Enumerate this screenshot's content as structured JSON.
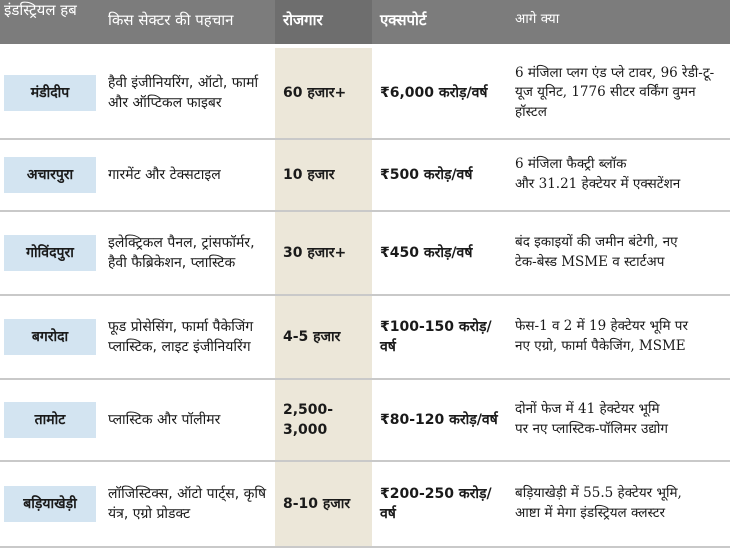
{
  "table": {
    "header": [
      "इंडस्ट्रियल हब",
      "किस सेक्टर की पहचान",
      "रोजगार",
      "एक्सपोर्ट",
      "आगे क्या"
    ],
    "rows": [
      [
        [
          "मंडीदीप"
        ],
        [
          "हैवी इंजीनियरिंग, ऑटो, फार्मा",
          "और ऑप्टिकल फाइबर"
        ],
        [
          "60 हजार+"
        ],
        [
          "₹6,000 करोड़/वर्ष"
        ],
        [
          "6 मंजिला प्लग एंड प्ले टावर, 96 रेडी-टू-",
          "यूज यूनिट, 1776 सीटर वर्किंग वुमन हॉस्टल"
        ]
      ],
      [
        [
          "अचारपुरा"
        ],
        [
          "गारमेंट और टेक्सटाइल"
        ],
        [
          "10 हजार"
        ],
        [
          "₹500 करोड़/वर्ष"
        ],
        [
          "6 मंजिला फैक्ट्री ब्लॉक",
          "और 31.21 हेक्टेयर में एक्सटेंशन"
        ]
      ],
      [
        [
          "गोविंदपुरा"
        ],
        [
          "इलेक्ट्रिकल पैनल, ट्रांसफॉर्मर,",
          "हैवी फैब्रिकेशन, प्लास्टिक"
        ],
        [
          "30 हजार+"
        ],
        [
          "₹450 करोड़/वर्ष"
        ],
        [
          "बंद इकाइयों की जमीन बंटेगी, नए",
          "टेक-बेस्ड MSME व स्टार्टअप"
        ]
      ],
      [
        [
          "बगरोदा"
        ],
        [
          "फूड प्रोसेसिंग, फार्मा पैकेजिंग",
          "प्लास्टिक, लाइट इंजीनियरिंग"
        ],
        [
          "4-5 हजार"
        ],
        [
          "₹100-150 करोड़/वर्ष"
        ],
        [
          "फेस-1 व 2 में 19 हेक्टेयर भूमि पर",
          "नए एग्रो, फार्मा पैकेजिंग, MSME"
        ]
      ],
      [
        [
          "तामोट"
        ],
        [
          "प्लास्टिक और पॉलीमर"
        ],
        [
          "2,500-3,000"
        ],
        [
          "₹80-120 करोड़/वर्ष"
        ],
        [
          "दोनों फेज में 41 हेक्टेयर भूमि",
          "पर नए प्लास्टिक-पॉलिमर उद्योग"
        ]
      ],
      [
        [
          "बड़ियाखेड़ी"
        ],
        [
          "लॉजिस्टिक्स, ऑटो पार्ट्स, कृषि",
          "यंत्र, एग्रो प्रोडक्ट"
        ],
        [
          "8-10 हजार"
        ],
        [
          "₹200-250 करोड़/वर्ष"
        ],
        [
          "बड़ियाखेड़ी में 55.5 हेक्टेयर भूमि,",
          "आष्टा में मेगा इंडस्ट्रियल क्लस्टर"
        ]
      ]
    ]
  }
}
